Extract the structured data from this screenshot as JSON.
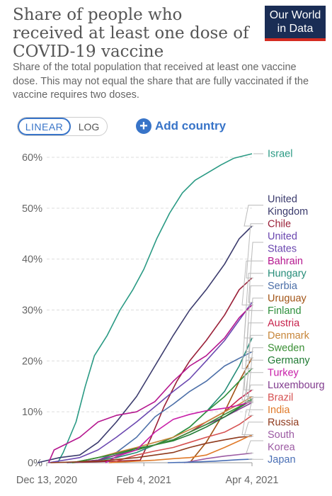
{
  "header": {
    "title": "Share of people who received at least one dose of COVID-19 vaccine",
    "subtitle": "Share of the total population that received at least one vaccine dose. This may not equal the share that are fully vaccinated if the vaccine requires two doses.",
    "logo_line1": "Our World",
    "logo_line2": "in Data",
    "logo_color": "#1a2d55",
    "logo_accent": "#d42b21"
  },
  "controls": {
    "linear_label": "LINEAR",
    "log_label": "LOG",
    "add_country_label": "Add country",
    "accent": "#3874c8"
  },
  "chart_data": {
    "type": "line",
    "yscale": "linear",
    "ylim": [
      0,
      60
    ],
    "y_ticks": [
      0,
      10,
      20,
      30,
      40,
      50,
      60
    ],
    "y_tick_labels": [
      "0%",
      "10%",
      "20%",
      "30%",
      "40%",
      "50%",
      "60%"
    ],
    "x_tick_labels": [
      "Dec 13, 2020",
      "Feb 4, 2021",
      "Apr 4, 2021"
    ],
    "grid": true,
    "legend": "right",
    "series": [
      {
        "name": "Israel",
        "color": "#2a9a84",
        "label_lines": [
          "Israel"
        ],
        "points": [
          [
            "2020-12-19",
            0
          ],
          [
            "2020-12-22",
            2
          ],
          [
            "2020-12-29",
            8
          ],
          [
            "2021-01-03",
            15
          ],
          [
            "2021-01-08",
            21
          ],
          [
            "2021-01-15",
            25
          ],
          [
            "2021-01-22",
            30
          ],
          [
            "2021-01-29",
            34
          ],
          [
            "2021-02-04",
            38
          ],
          [
            "2021-02-11",
            44
          ],
          [
            "2021-02-18",
            49
          ],
          [
            "2021-02-25",
            53
          ],
          [
            "2021-03-04",
            55.5
          ],
          [
            "2021-03-11",
            57
          ],
          [
            "2021-03-18",
            58.5
          ],
          [
            "2021-03-25",
            59.8
          ],
          [
            "2021-04-04",
            60.7
          ]
        ]
      },
      {
        "name": "United Kingdom",
        "color": "#3b3b6d",
        "label_lines": [
          "United",
          "Kingdom"
        ],
        "points": [
          [
            "2020-12-08",
            0
          ],
          [
            "2020-12-20",
            1
          ],
          [
            "2020-12-31",
            1.5
          ],
          [
            "2021-01-10",
            4
          ],
          [
            "2021-01-20",
            8
          ],
          [
            "2021-01-31",
            13
          ],
          [
            "2021-02-10",
            19
          ],
          [
            "2021-02-20",
            25
          ],
          [
            "2021-03-01",
            30
          ],
          [
            "2021-03-10",
            34
          ],
          [
            "2021-03-20",
            39
          ],
          [
            "2021-03-28",
            44
          ],
          [
            "2021-04-04",
            46.5
          ]
        ]
      },
      {
        "name": "Chile",
        "color": "#9a2038",
        "label_lines": [
          "Chile"
        ],
        "points": [
          [
            "2020-12-24",
            0
          ],
          [
            "2021-01-20",
            0.3
          ],
          [
            "2021-02-02",
            0.5
          ],
          [
            "2021-02-08",
            5
          ],
          [
            "2021-02-15",
            11
          ],
          [
            "2021-02-22",
            16
          ],
          [
            "2021-03-01",
            20
          ],
          [
            "2021-03-10",
            24
          ],
          [
            "2021-03-20",
            29
          ],
          [
            "2021-03-28",
            34
          ],
          [
            "2021-04-04",
            36.3
          ]
        ]
      },
      {
        "name": "United States",
        "color": "#6b48b0",
        "label_lines": [
          "United",
          "States"
        ],
        "points": [
          [
            "2020-12-14",
            0
          ],
          [
            "2020-12-31",
            1
          ],
          [
            "2021-01-10",
            2.5
          ],
          [
            "2021-01-20",
            5
          ],
          [
            "2021-01-31",
            8
          ],
          [
            "2021-02-10",
            11
          ],
          [
            "2021-02-20",
            14
          ],
          [
            "2021-03-01",
            16.5
          ],
          [
            "2021-03-10",
            20
          ],
          [
            "2021-03-20",
            24
          ],
          [
            "2021-03-28",
            28
          ],
          [
            "2021-04-04",
            31.5
          ]
        ]
      },
      {
        "name": "Bahrain",
        "color": "#b5178f",
        "label_lines": [
          "Bahrain"
        ],
        "points": [
          [
            "2020-12-14",
            0
          ],
          [
            "2020-12-17",
            2.5
          ],
          [
            "2020-12-31",
            5
          ],
          [
            "2021-01-10",
            8
          ],
          [
            "2021-01-20",
            9.3
          ],
          [
            "2021-01-31",
            10
          ],
          [
            "2021-02-10",
            12
          ],
          [
            "2021-02-20",
            16
          ],
          [
            "2021-03-01",
            19
          ],
          [
            "2021-03-10",
            21
          ],
          [
            "2021-03-20",
            24.5
          ],
          [
            "2021-03-28",
            28.5
          ],
          [
            "2021-04-04",
            31
          ]
        ]
      },
      {
        "name": "Hungary",
        "color": "#258c78",
        "label_lines": [
          "Hungary"
        ],
        "points": [
          [
            "2020-12-26",
            0
          ],
          [
            "2021-01-10",
            0.5
          ],
          [
            "2021-01-20",
            1
          ],
          [
            "2021-01-31",
            2
          ],
          [
            "2021-02-10",
            3.5
          ],
          [
            "2021-02-20",
            5
          ],
          [
            "2021-03-01",
            7
          ],
          [
            "2021-03-10",
            10
          ],
          [
            "2021-03-20",
            14
          ],
          [
            "2021-03-28",
            19
          ],
          [
            "2021-04-04",
            24.5
          ]
        ]
      },
      {
        "name": "Serbia",
        "color": "#4c6fa8",
        "label_lines": [
          "Serbia"
        ],
        "points": [
          [
            "2020-12-24",
            0
          ],
          [
            "2021-01-10",
            0.5
          ],
          [
            "2021-01-20",
            2
          ],
          [
            "2021-01-31",
            5
          ],
          [
            "2021-02-10",
            9
          ],
          [
            "2021-02-20",
            11.5
          ],
          [
            "2021-03-01",
            14
          ],
          [
            "2021-03-10",
            16
          ],
          [
            "2021-03-20",
            19
          ],
          [
            "2021-03-28",
            20.5
          ],
          [
            "2021-04-04",
            21.8
          ]
        ]
      },
      {
        "name": "Uruguay",
        "color": "#a25416",
        "label_lines": [
          "Uruguay"
        ],
        "points": [
          [
            "2021-03-01",
            0
          ],
          [
            "2021-03-10",
            4
          ],
          [
            "2021-03-20",
            10
          ],
          [
            "2021-03-28",
            16
          ],
          [
            "2021-04-04",
            20.6
          ]
        ]
      },
      {
        "name": "Finland",
        "color": "#2e8f3c",
        "label_lines": [
          "Finland"
        ],
        "points": [
          [
            "2020-12-27",
            0
          ],
          [
            "2021-01-10",
            0.5
          ],
          [
            "2021-01-20",
            1.5
          ],
          [
            "2021-01-31",
            2.5
          ],
          [
            "2021-02-10",
            3.5
          ],
          [
            "2021-02-20",
            5
          ],
          [
            "2021-03-01",
            7
          ],
          [
            "2021-03-10",
            10
          ],
          [
            "2021-03-20",
            13
          ],
          [
            "2021-03-28",
            16
          ],
          [
            "2021-04-04",
            18.5
          ]
        ]
      },
      {
        "name": "Austria",
        "color": "#c7224b",
        "label_lines": [
          "Austria"
        ],
        "points": [
          [
            "2020-12-27",
            0
          ],
          [
            "2021-01-10",
            0.5
          ],
          [
            "2021-01-20",
            1.5
          ],
          [
            "2021-01-31",
            2.5
          ],
          [
            "2021-02-10",
            3.5
          ],
          [
            "2021-02-20",
            4.5
          ],
          [
            "2021-03-01",
            6
          ],
          [
            "2021-03-10",
            8
          ],
          [
            "2021-03-20",
            10
          ],
          [
            "2021-03-28",
            12.5
          ],
          [
            "2021-04-04",
            14.3
          ]
        ]
      },
      {
        "name": "Denmark",
        "color": "#c7863a",
        "label_lines": [
          "Denmark"
        ],
        "points": [
          [
            "2020-12-27",
            0
          ],
          [
            "2021-01-10",
            1
          ],
          [
            "2021-01-20",
            2
          ],
          [
            "2021-01-31",
            3
          ],
          [
            "2021-02-10",
            4
          ],
          [
            "2021-02-20",
            5
          ],
          [
            "2021-03-01",
            6.5
          ],
          [
            "2021-03-10",
            8
          ],
          [
            "2021-03-20",
            10
          ],
          [
            "2021-03-28",
            11.5
          ],
          [
            "2021-04-04",
            13
          ]
        ]
      },
      {
        "name": "Luxembourg",
        "color": "#813b8e",
        "label_lines": [
          "Luxembourg"
        ],
        "points": [
          [
            "2020-12-28",
            0
          ],
          [
            "2021-01-10",
            0.5
          ],
          [
            "2021-01-20",
            1.5
          ],
          [
            "2021-01-31",
            2.5
          ],
          [
            "2021-02-10",
            3.5
          ],
          [
            "2021-02-20",
            4.5
          ],
          [
            "2021-03-01",
            6
          ],
          [
            "2021-03-10",
            7.5
          ],
          [
            "2021-03-20",
            9
          ],
          [
            "2021-03-28",
            10.5
          ],
          [
            "2021-04-04",
            11.8
          ]
        ]
      },
      {
        "name": "Germany",
        "color": "#1f7a33",
        "label_lines": [
          "Germany"
        ],
        "points": [
          [
            "2020-12-27",
            0
          ],
          [
            "2021-01-10",
            1
          ],
          [
            "2021-01-20",
            1.8
          ],
          [
            "2021-01-31",
            2.8
          ],
          [
            "2021-02-10",
            3.5
          ],
          [
            "2021-02-20",
            4.3
          ],
          [
            "2021-03-01",
            5.5
          ],
          [
            "2021-03-10",
            7
          ],
          [
            "2021-03-20",
            9
          ],
          [
            "2021-03-28",
            10.8
          ],
          [
            "2021-04-04",
            12.3
          ]
        ]
      },
      {
        "name": "Sweden",
        "color": "#3a8f35",
        "label_lines": [
          "Sweden"
        ],
        "points": [
          [
            "2020-12-27",
            0
          ],
          [
            "2021-01-10",
            1
          ],
          [
            "2021-01-20",
            1.8
          ],
          [
            "2021-01-31",
            2.5
          ],
          [
            "2021-02-10",
            3.5
          ],
          [
            "2021-02-20",
            4.5
          ],
          [
            "2021-03-01",
            6
          ],
          [
            "2021-03-10",
            7.5
          ],
          [
            "2021-03-20",
            9.5
          ],
          [
            "2021-03-28",
            11
          ],
          [
            "2021-04-04",
            12.6
          ]
        ]
      },
      {
        "name": "Turkey",
        "color": "#c81ea8",
        "label_lines": [
          "Turkey"
        ],
        "points": [
          [
            "2021-01-14",
            0
          ],
          [
            "2021-01-20",
            1.2
          ],
          [
            "2021-01-31",
            2.5
          ],
          [
            "2021-02-10",
            6
          ],
          [
            "2021-02-20",
            8.5
          ],
          [
            "2021-03-01",
            9.5
          ],
          [
            "2021-03-10",
            10.2
          ],
          [
            "2021-03-20",
            10.7
          ],
          [
            "2021-03-28",
            11.3
          ],
          [
            "2021-04-04",
            12
          ]
        ]
      },
      {
        "name": "Brazil",
        "color": "#d65151",
        "label_lines": [
          "Brazil"
        ],
        "points": [
          [
            "2021-01-17",
            0
          ],
          [
            "2021-01-31",
            1.5
          ],
          [
            "2021-02-10",
            2.3
          ],
          [
            "2021-02-20",
            3
          ],
          [
            "2021-03-01",
            4
          ],
          [
            "2021-03-10",
            5
          ],
          [
            "2021-03-20",
            6
          ],
          [
            "2021-03-28",
            7.5
          ],
          [
            "2021-04-04",
            9.3
          ]
        ]
      },
      {
        "name": "Russia",
        "color": "#8f3a1d",
        "label_lines": [
          "Russia"
        ],
        "points": [
          [
            "2020-12-15",
            0
          ],
          [
            "2021-01-10",
            0.3
          ],
          [
            "2021-01-31",
            1
          ],
          [
            "2021-02-10",
            1.5
          ],
          [
            "2021-02-20",
            2
          ],
          [
            "2021-03-01",
            3
          ],
          [
            "2021-03-10",
            3.8
          ],
          [
            "2021-03-20",
            4.5
          ],
          [
            "2021-03-28",
            5
          ],
          [
            "2021-04-04",
            5.2
          ]
        ]
      },
      {
        "name": "India",
        "color": "#e07a2a",
        "label_lines": [
          "India"
        ],
        "points": [
          [
            "2021-01-16",
            0
          ],
          [
            "2021-01-31",
            0.3
          ],
          [
            "2021-02-10",
            0.5
          ],
          [
            "2021-02-20",
            0.8
          ],
          [
            "2021-03-01",
            1
          ],
          [
            "2021-03-10",
            1.5
          ],
          [
            "2021-03-20",
            3
          ],
          [
            "2021-03-28",
            4.3
          ],
          [
            "2021-04-04",
            5.5
          ]
        ]
      },
      {
        "name": "South Korea",
        "color": "#9c5ba3",
        "label_lines": [
          "South",
          "Korea"
        ],
        "points": [
          [
            "2021-02-26",
            0
          ],
          [
            "2021-03-10",
            0.8
          ],
          [
            "2021-03-20",
            1.3
          ],
          [
            "2021-03-28",
            1.6
          ],
          [
            "2021-04-04",
            1.9
          ]
        ]
      },
      {
        "name": "Japan",
        "color": "#4a6fb5",
        "label_lines": [
          "Japan"
        ],
        "points": [
          [
            "2021-02-17",
            0
          ],
          [
            "2021-03-01",
            0.1
          ],
          [
            "2021-03-15",
            0.3
          ],
          [
            "2021-03-28",
            0.6
          ],
          [
            "2021-04-04",
            0.7
          ]
        ]
      }
    ]
  }
}
